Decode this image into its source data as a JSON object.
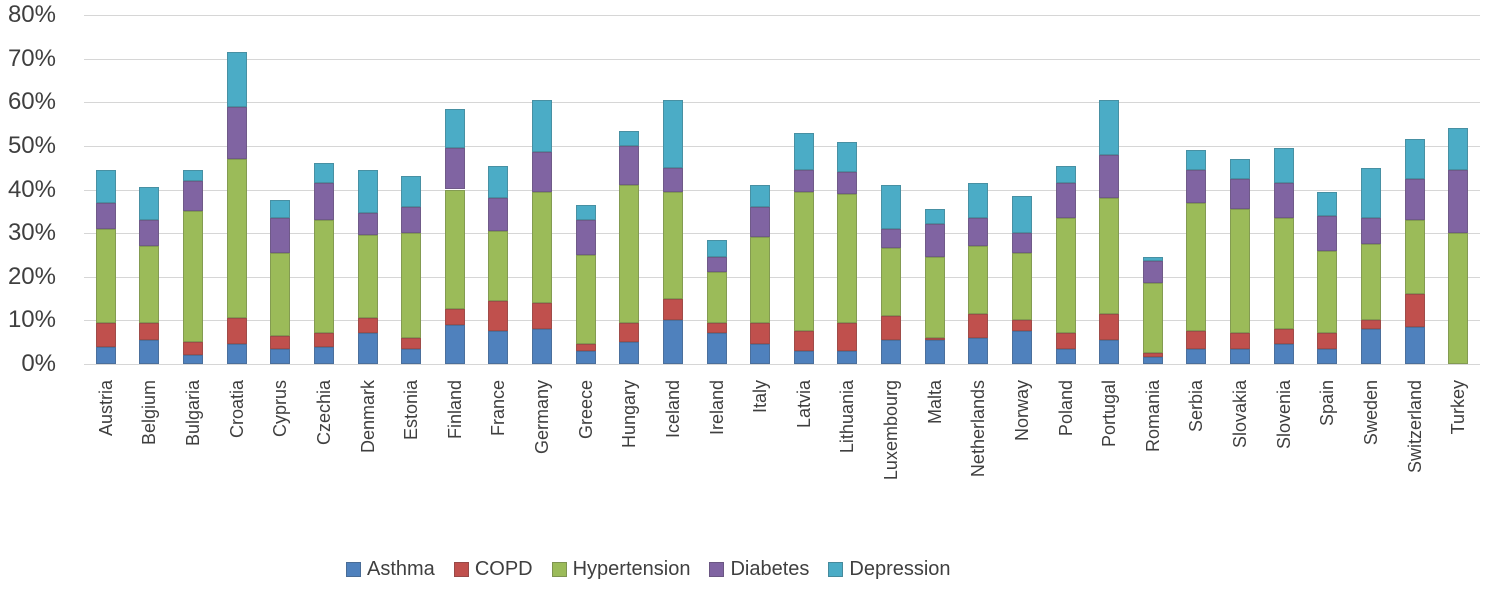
{
  "chart_data": {
    "type": "bar",
    "stacked": true,
    "title": "",
    "xlabel": "",
    "ylabel": "",
    "ylim": [
      0,
      80
    ],
    "y_tick_labels": [
      "0%",
      "10%",
      "20%",
      "30%",
      "40%",
      "50%",
      "60%",
      "70%",
      "80%"
    ],
    "grid": true,
    "legend_position": "bottom",
    "categories": [
      "Austria",
      "Belgium",
      "Bulgaria",
      "Croatia",
      "Cyprus",
      "Czechia",
      "Denmark",
      "Estonia",
      "Finland",
      "France",
      "Germany",
      "Greece",
      "Hungary",
      "Iceland",
      "Ireland",
      "Italy",
      "Latvia",
      "Lithuania",
      "Luxembourg",
      "Malta",
      "Netherlands",
      "Norway",
      "Poland",
      "Portugal",
      "Romania",
      "Serbia",
      "Slovakia",
      "Slovenia",
      "Spain",
      "Sweden",
      "Switzerland",
      "Turkey"
    ],
    "series": [
      {
        "name": "Asthma",
        "color": "#4F81BD",
        "values": [
          4,
          5.5,
          2,
          4.5,
          3.5,
          4,
          7,
          3.5,
          9,
          7.5,
          8,
          3,
          5,
          10,
          7,
          4.5,
          3,
          3,
          5.5,
          5.5,
          6,
          7.5,
          3.5,
          5.5,
          1.5,
          3.5,
          3.5,
          4.5,
          3.5,
          8,
          8.5,
          0
        ]
      },
      {
        "name": "COPD",
        "color": "#C0504D",
        "values": [
          5.5,
          4,
          3,
          6,
          3,
          3,
          3.5,
          2.5,
          3.5,
          7,
          6,
          1.5,
          4.5,
          5,
          2.5,
          5,
          4.5,
          6.5,
          5.5,
          0.5,
          5.5,
          2.5,
          3.5,
          6,
          1,
          4,
          3.5,
          3.5,
          3.5,
          2,
          7.5,
          0
        ]
      },
      {
        "name": "Hypertension",
        "color": "#9BBB59",
        "values": [
          21.5,
          17.5,
          30,
          36.5,
          19,
          26,
          19,
          24,
          27.5,
          16,
          25.5,
          20.5,
          31.5,
          24.5,
          11.5,
          19.5,
          32,
          29.5,
          15.5,
          18.5,
          15.5,
          15.5,
          26.5,
          26.5,
          16,
          29.5,
          28.5,
          25.5,
          19,
          17.5,
          17,
          30
        ]
      },
      {
        "name": "Diabetes",
        "color": "#8064A2",
        "values": [
          6,
          6,
          7,
          12,
          8,
          8.5,
          5,
          6,
          9.5,
          7.5,
          9,
          8,
          9,
          5.5,
          3.5,
          7,
          5,
          5,
          4.5,
          7.5,
          6.5,
          4.5,
          8,
          10,
          5,
          7.5,
          7,
          8,
          8,
          6,
          9.5,
          14.5
        ]
      },
      {
        "name": "Depression",
        "color": "#4BACC6",
        "values": [
          7.5,
          7.5,
          2.5,
          12.5,
          4,
          4.5,
          10,
          7,
          9,
          7.5,
          12,
          3.5,
          3.5,
          15.5,
          4,
          5,
          8.5,
          7,
          10,
          3.5,
          8,
          8.5,
          4,
          12.5,
          1,
          4.5,
          4.5,
          8,
          5.5,
          11.5,
          9,
          9.5
        ]
      }
    ],
    "colors": {
      "text": "#3f3f3f",
      "gridline": "#d6d6d6",
      "background": "#ffffff"
    }
  }
}
